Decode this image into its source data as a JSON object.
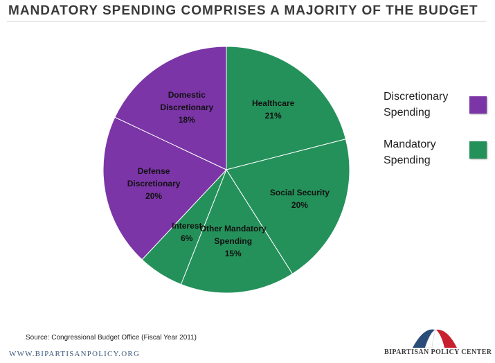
{
  "title": "MANDATORY SPENDING COMPRISES A MAJORITY OF THE BUDGET",
  "source": "Source: Congressional Budget Office (Fiscal Year 2011)",
  "website": "WWW.BIPARTISANPOLICY.ORG",
  "organization": "BIPARTISAN POLICY CENTER",
  "colors": {
    "discretionary": "#7b35a6",
    "mandatory": "#24915a"
  },
  "legend": {
    "discretionary": "Discretionary Spending",
    "mandatory": "Mandatory Spending"
  },
  "chart_data": {
    "type": "pie",
    "title": "MANDATORY SPENDING COMPRISES A MAJORITY OF THE BUDGET",
    "legend_position": "right",
    "slices": [
      {
        "label": [
          "Healthcare"
        ],
        "value_label": "21%",
        "value": 21,
        "group": "mandatory"
      },
      {
        "label": [
          "Social Security"
        ],
        "value_label": "20%",
        "value": 20,
        "group": "mandatory"
      },
      {
        "label": [
          "Other Mandatory",
          "Spending"
        ],
        "value_label": "15%",
        "value": 15,
        "group": "mandatory"
      },
      {
        "label": [
          "Interest"
        ],
        "value_label": "6%",
        "value": 6,
        "group": "mandatory"
      },
      {
        "label": [
          "Defense",
          "Discretionary"
        ],
        "value_label": "20%",
        "value": 20,
        "group": "discretionary"
      },
      {
        "label": [
          "Domestic",
          "Discretionary"
        ],
        "value_label": "18%",
        "value": 18,
        "group": "discretionary"
      }
    ]
  }
}
